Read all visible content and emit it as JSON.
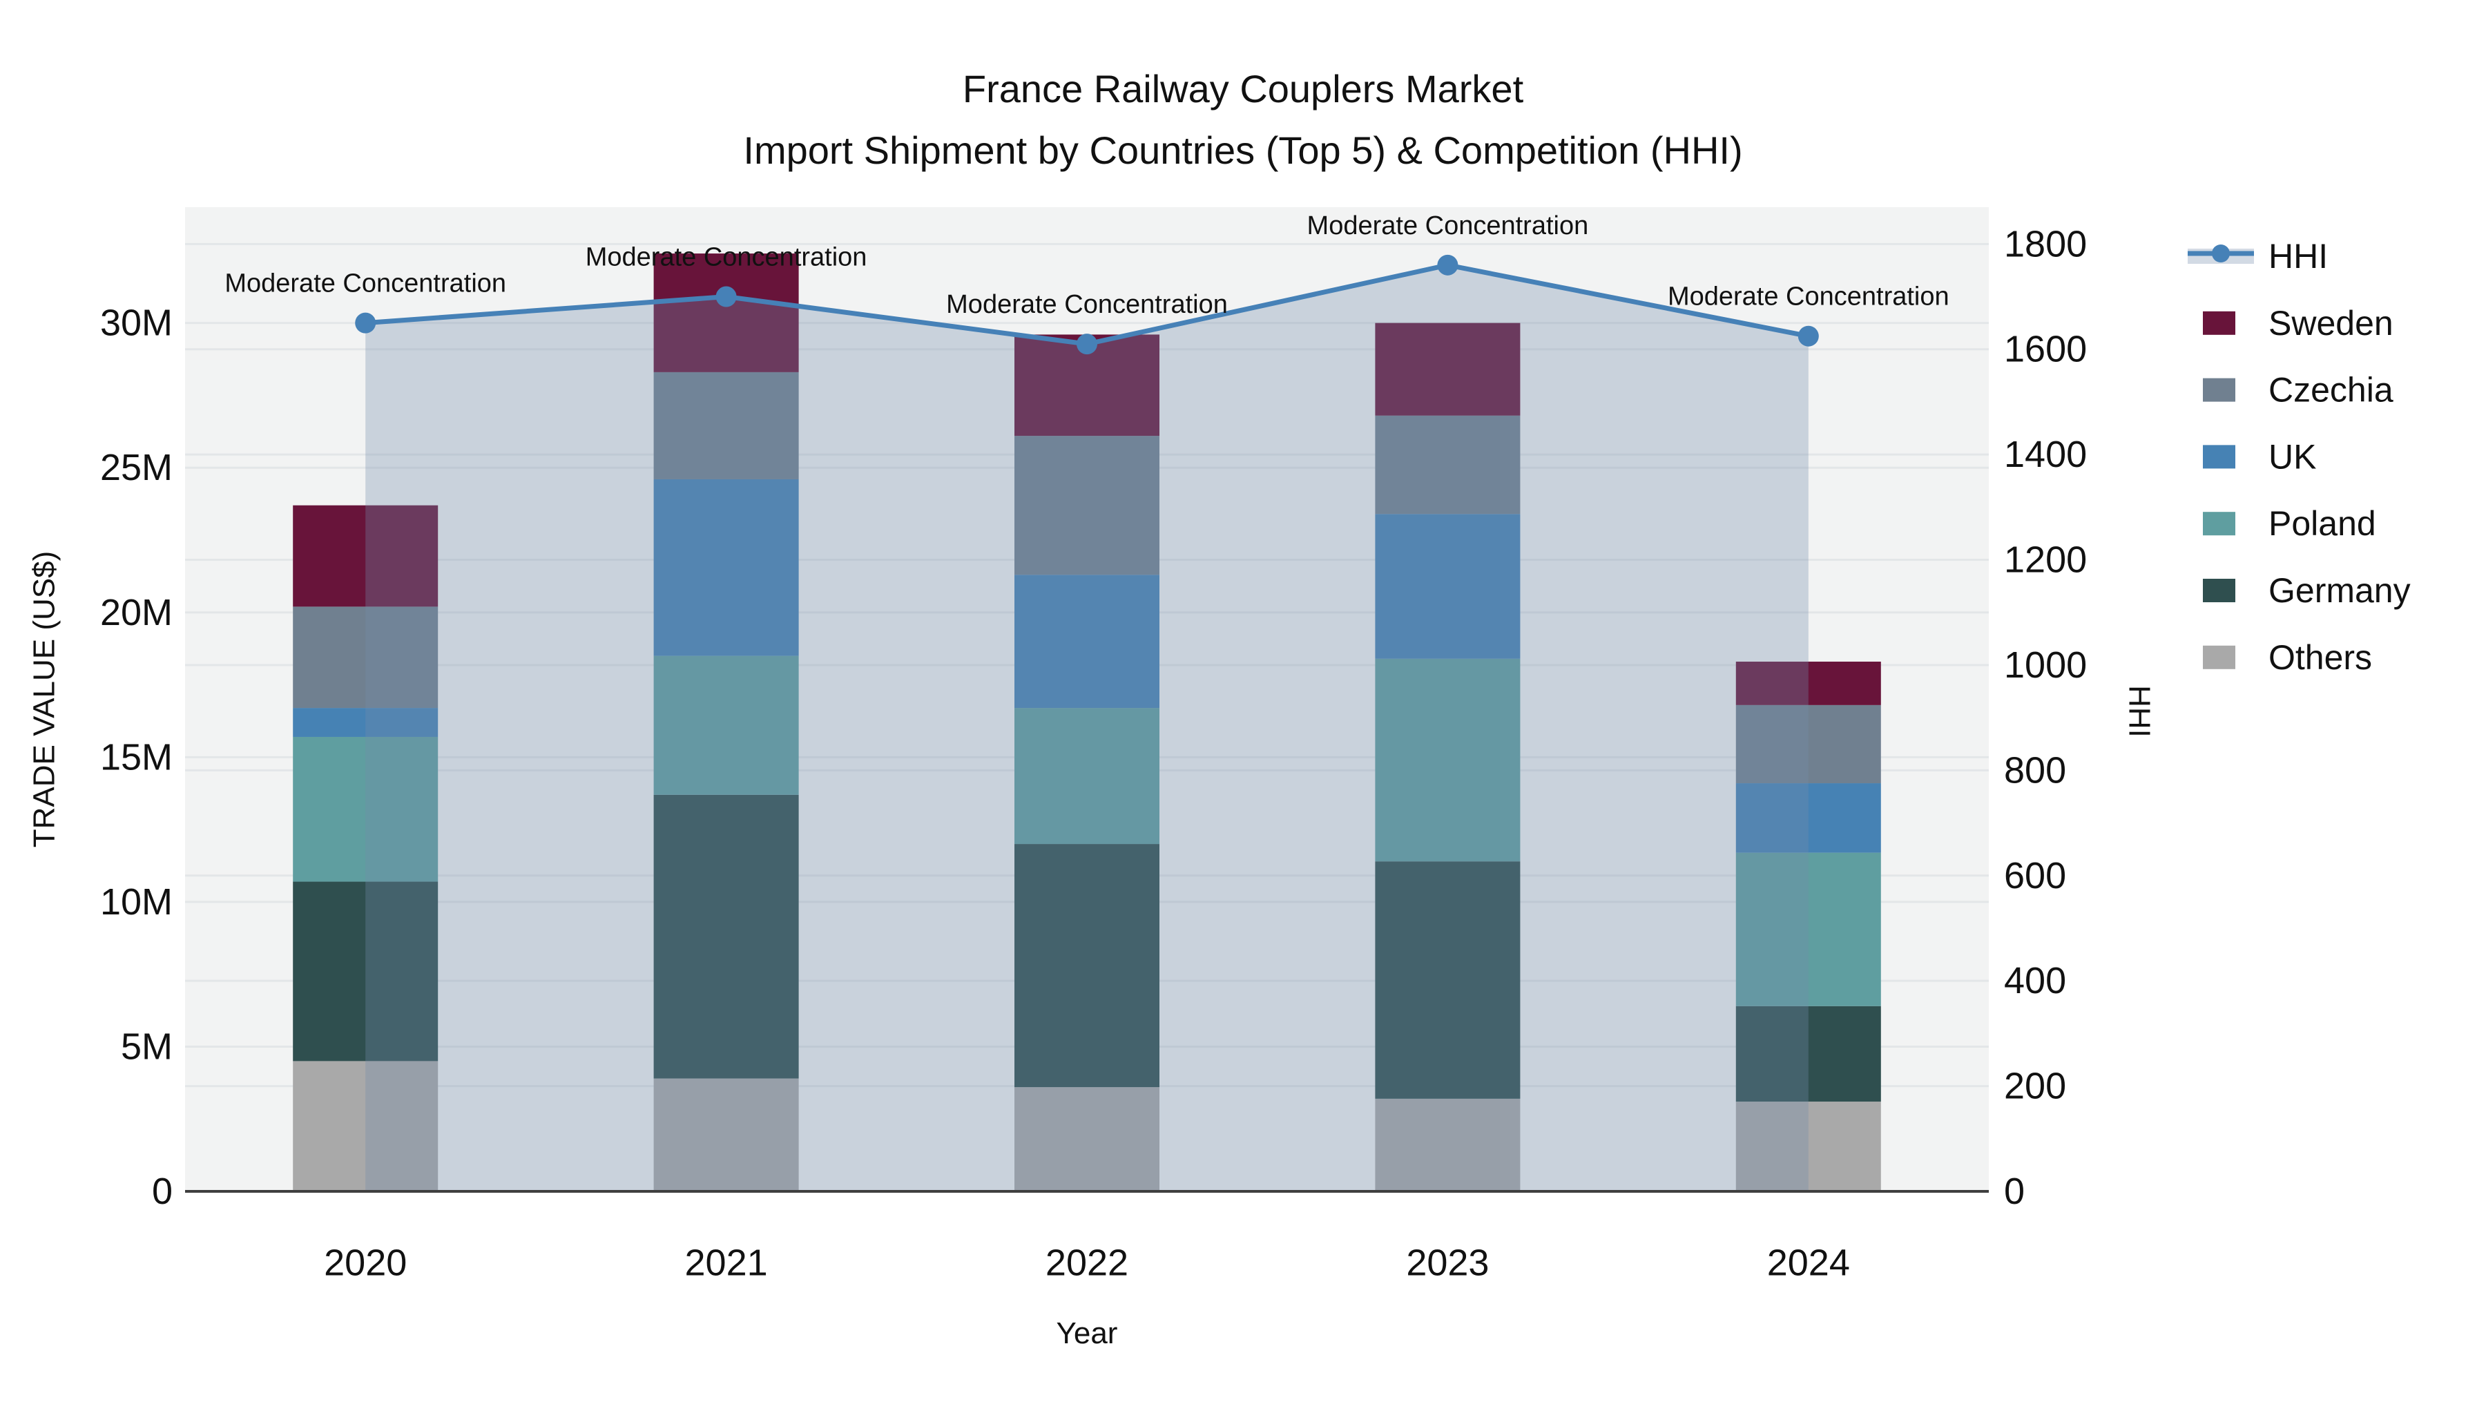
{
  "title": {
    "line1": "France Railway Couplers Market",
    "line2": "Import Shipment by Countries (Top 5) & Competition (HHI)"
  },
  "chart_data": {
    "type": "bar",
    "stacked": true,
    "categories": [
      "2020",
      "2021",
      "2022",
      "2023",
      "2024"
    ],
    "xlabel": "Year",
    "ylabel": "TRADE VALUE (US$)",
    "y2label": "HHI",
    "ylim": [
      0,
      34000000
    ],
    "y2lim": [
      0,
      1870
    ],
    "grid": true,
    "ytick_values": [
      0,
      5000000,
      10000000,
      15000000,
      20000000,
      25000000,
      30000000
    ],
    "ytick_labels": [
      "0",
      "5M",
      "10M",
      "15M",
      "20M",
      "25M",
      "30M"
    ],
    "y2tick_values": [
      0,
      200,
      400,
      600,
      800,
      1000,
      1200,
      1400,
      1600,
      1800
    ],
    "y2tick_labels": [
      "0",
      "200",
      "400",
      "600",
      "800",
      "1000",
      "1200",
      "1400",
      "1600",
      "1800"
    ],
    "series": [
      {
        "name": "Others",
        "color": "#a9a9a9",
        "values": [
          4500000,
          3900000,
          3600000,
          3200000,
          3100000
        ]
      },
      {
        "name": "Germany",
        "color": "#2f4f4f",
        "values": [
          6200000,
          9800000,
          8400000,
          8200000,
          3300000
        ]
      },
      {
        "name": "Poland",
        "color": "#5f9ea0",
        "values": [
          5000000,
          4800000,
          4700000,
          7000000,
          5300000
        ]
      },
      {
        "name": "UK",
        "color": "#4682b4",
        "values": [
          1000000,
          6100000,
          4600000,
          5000000,
          2400000
        ]
      },
      {
        "name": "Czechia",
        "color": "#708090",
        "values": [
          3500000,
          3700000,
          4800000,
          3400000,
          2700000
        ]
      },
      {
        "name": "Sweden",
        "color": "#68143a",
        "values": [
          3500000,
          4100000,
          3500000,
          3200000,
          1500000
        ]
      }
    ],
    "line_series": {
      "name": "HHI",
      "color": "#4681b7",
      "fill_color": "rgba(114,140,172,0.32)",
      "values": [
        1650,
        1700,
        1610,
        1760,
        1625
      ]
    },
    "annotations": [
      "Moderate Concentration",
      "Moderate Concentration",
      "Moderate Concentration",
      "Moderate Concentration",
      "Moderate Concentration"
    ]
  },
  "legend": {
    "items": [
      {
        "label": "HHI",
        "type": "line"
      },
      {
        "label": "Sweden",
        "type": "swatch",
        "color": "#68143a"
      },
      {
        "label": "Czechia",
        "type": "swatch",
        "color": "#708090"
      },
      {
        "label": "UK",
        "type": "swatch",
        "color": "#4682b4"
      },
      {
        "label": "Poland",
        "type": "swatch",
        "color": "#5f9ea0"
      },
      {
        "label": "Germany",
        "type": "swatch",
        "color": "#2f4f4f"
      },
      {
        "label": "Others",
        "type": "swatch",
        "color": "#a9a9a9"
      }
    ]
  },
  "style": {
    "plot_bg": "#f2f3f3",
    "grid_color": "#e3e6e8",
    "axis_line_color": "#3f3f3f",
    "text_color": "#111111"
  }
}
